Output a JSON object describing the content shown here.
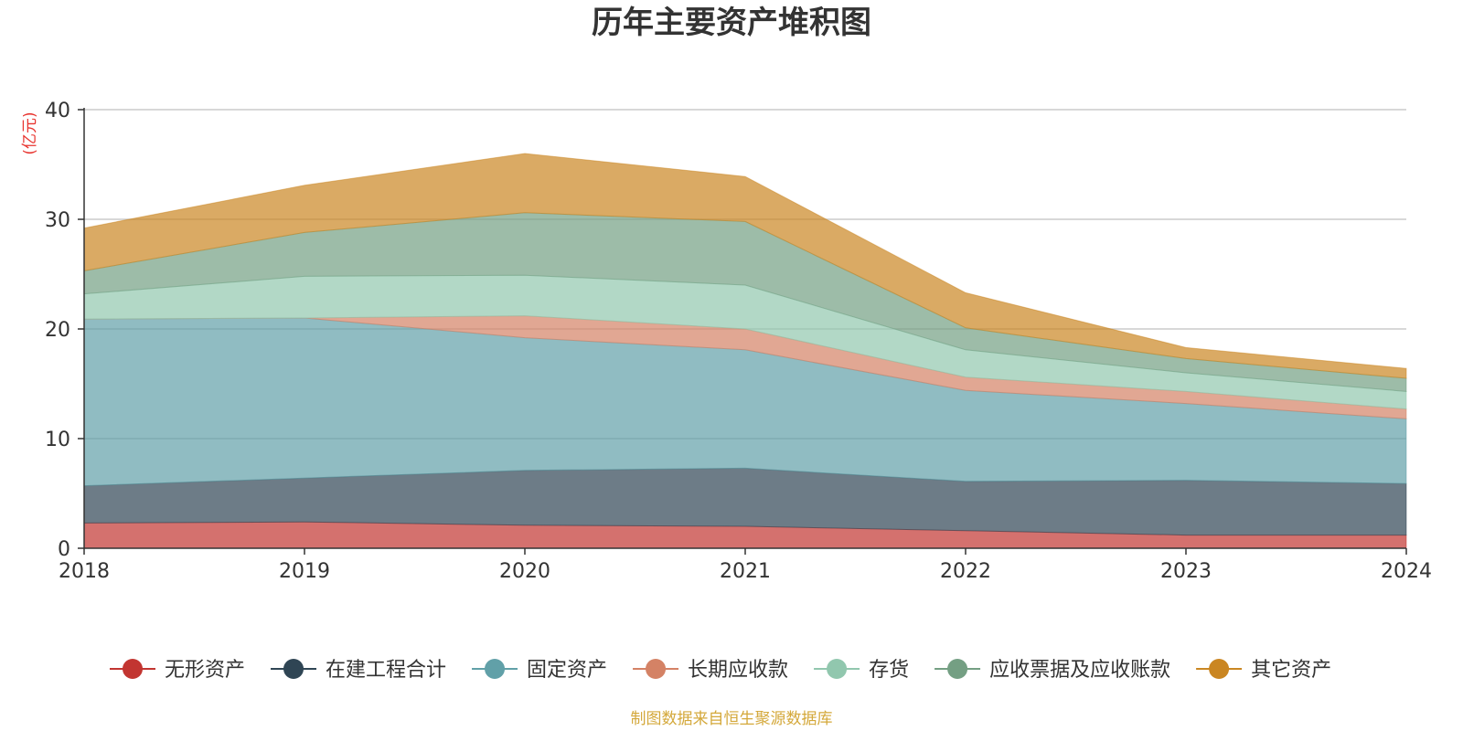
{
  "title": "历年主要资产堆积图",
  "unit_label": "(亿元)",
  "source_note": "制图数据来自恒生聚源数据库",
  "chart_data": {
    "type": "area",
    "stacked": true,
    "title": "历年主要资产堆积图",
    "ylabel": "(亿元)",
    "x": [
      "2018",
      "2019",
      "2020",
      "2021",
      "2022",
      "2023",
      "2024"
    ],
    "ylim": [
      0,
      40
    ],
    "yticks": [
      0,
      10,
      20,
      30,
      40
    ],
    "grid": true,
    "legend_position": "bottom",
    "series": [
      {
        "name": "无形资产",
        "color": "#c23531",
        "values": [
          2.3,
          2.4,
          2.1,
          2.0,
          1.6,
          1.2,
          1.2
        ]
      },
      {
        "name": "在建工程合计",
        "color": "#2f4554",
        "values": [
          3.4,
          4.0,
          5.0,
          5.3,
          4.5,
          5.0,
          4.7
        ]
      },
      {
        "name": "固定资产",
        "color": "#61a0a8",
        "values": [
          15.2,
          14.6,
          12.1,
          10.8,
          8.3,
          7.0,
          5.9
        ]
      },
      {
        "name": "长期应收款",
        "color": "#d48265",
        "values": [
          0,
          0,
          2.0,
          1.9,
          1.2,
          1.1,
          0.9
        ]
      },
      {
        "name": "存货",
        "color": "#91c7ae",
        "values": [
          2.3,
          3.8,
          3.7,
          4.0,
          2.5,
          1.7,
          1.6
        ]
      },
      {
        "name": "应收票据及应收账款",
        "color": "#749f83",
        "values": [
          2.1,
          4.0,
          5.7,
          5.8,
          2.0,
          1.3,
          1.2
        ]
      },
      {
        "name": "其它资产",
        "color": "#ca8622",
        "values": [
          3.9,
          4.3,
          5.4,
          4.1,
          3.2,
          1.0,
          0.9
        ]
      }
    ]
  }
}
